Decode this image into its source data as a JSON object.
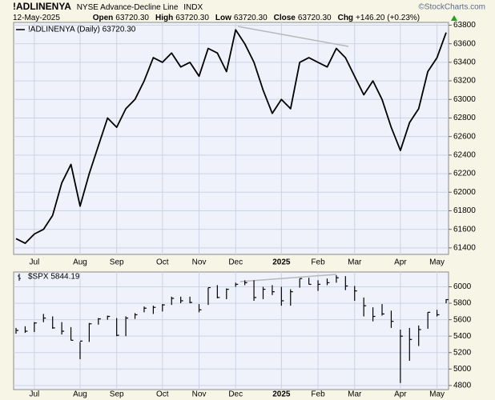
{
  "header": {
    "symbol": "!ADLINENYA",
    "description": "NYSE Advance-Decline Line",
    "exchange": "INDX",
    "date": "12-May-2025",
    "quote": [
      {
        "label": "Open",
        "value": "63720.30"
      },
      {
        "label": "High",
        "value": "63720.30"
      },
      {
        "label": "Low",
        "value": "63720.30"
      },
      {
        "label": "Close",
        "value": "63720.30"
      },
      {
        "label": "Chg",
        "value": "+146.20 (+0.23%)"
      }
    ],
    "watermark": "©StockCharts.com"
  },
  "chart_data": [
    {
      "type": "line",
      "categories": [
        null,
        null,
        "Jul",
        null,
        null,
        null,
        null,
        "Aug",
        null,
        null,
        null,
        "Sep",
        null,
        null,
        null,
        null,
        "Oct",
        null,
        null,
        null,
        "Nov",
        null,
        null,
        null,
        "Dec",
        null,
        null,
        null,
        null,
        "2025",
        null,
        null,
        null,
        "Feb",
        null,
        null,
        null,
        "Mar",
        null,
        null,
        null,
        null,
        "Apr",
        null,
        null,
        null,
        "May",
        null
      ],
      "series": [
        {
          "name": "!ADLINENYA (Daily) 63720.30",
          "color": "#000000",
          "values": [
            61500,
            61450,
            61550,
            61600,
            61750,
            62100,
            62300,
            61850,
            62200,
            62500,
            62800,
            62700,
            62900,
            63000,
            63200,
            63450,
            63400,
            63500,
            63350,
            63400,
            63250,
            63550,
            63500,
            63300,
            63750,
            63600,
            63400,
            63100,
            62850,
            63000,
            62900,
            63400,
            63450,
            63400,
            63350,
            63550,
            63450,
            63250,
            63050,
            63200,
            63000,
            62700,
            62450,
            62750,
            62900,
            63300,
            63450,
            63720.3
          ]
        }
      ],
      "ylim": [
        61330,
        63830
      ],
      "yticks": [
        61400,
        61600,
        61800,
        62000,
        62200,
        62400,
        62600,
        62800,
        63000,
        63200,
        63400,
        63600,
        63800
      ],
      "grid": true
    },
    {
      "type": "hlc",
      "categories": [
        null,
        null,
        "Jul",
        null,
        null,
        null,
        null,
        "Aug",
        null,
        null,
        null,
        "Sep",
        null,
        null,
        null,
        null,
        "Oct",
        null,
        null,
        null,
        "Nov",
        null,
        null,
        null,
        "Dec",
        null,
        null,
        null,
        null,
        "2025",
        null,
        null,
        null,
        "Feb",
        null,
        null,
        null,
        "Mar",
        null,
        null,
        null,
        null,
        "Apr",
        null,
        null,
        null,
        "May",
        null
      ],
      "series": [
        {
          "name": "$SPX 5844.19",
          "color": "#000000",
          "high": [
            5500,
            5520,
            5570,
            5670,
            5640,
            5570,
            5510,
            5330,
            5560,
            5620,
            5650,
            5620,
            5640,
            5680,
            5760,
            5770,
            5790,
            5880,
            5880,
            5880,
            5790,
            5990,
            6020,
            5980,
            6050,
            6080,
            6080,
            6000,
            6020,
            6000,
            5970,
            6100,
            6110,
            6080,
            6100,
            6140,
            6130,
            6010,
            5870,
            5750,
            5790,
            5710,
            5480,
            5500,
            5530,
            5690,
            5720,
            5850
          ],
          "low": [
            5430,
            5440,
            5450,
            5570,
            5490,
            5420,
            5350,
            5120,
            5330,
            5540,
            5600,
            5400,
            5400,
            5610,
            5690,
            5670,
            5700,
            5780,
            5800,
            5800,
            5690,
            5780,
            5860,
            5850,
            6000,
            6020,
            5830,
            5850,
            5900,
            5770,
            5770,
            5990,
            6030,
            5950,
            6020,
            6050,
            5960,
            5830,
            5640,
            5580,
            5650,
            5500,
            4830,
            5100,
            5280,
            5490,
            5640,
            5800
          ],
          "close": [
            5470,
            5460,
            5560,
            5620,
            5500,
            5460,
            5350,
            5340,
            5550,
            5610,
            5640,
            5410,
            5620,
            5660,
            5740,
            5750,
            5780,
            5860,
            5830,
            5810,
            5720,
            5990,
            5870,
            5970,
            6030,
            6050,
            5870,
            5970,
            5940,
            5830,
            5940,
            6100,
            6030,
            6030,
            6050,
            6110,
            6010,
            5950,
            5770,
            5640,
            5670,
            5580,
            5400,
            5360,
            5480,
            5690,
            5660,
            5844.19
          ]
        }
      ],
      "ylim": [
        4750,
        6180
      ],
      "yticks": [
        4800,
        5000,
        5200,
        5400,
        5600,
        5800,
        6000
      ],
      "grid": true
    }
  ]
}
